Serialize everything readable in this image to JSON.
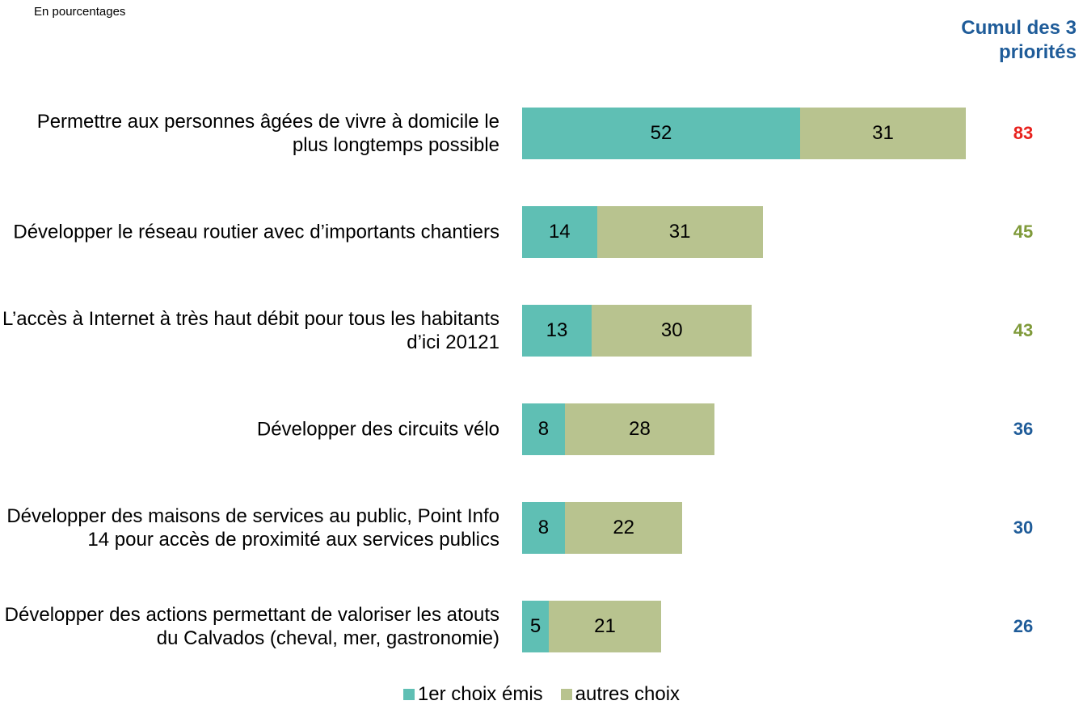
{
  "chart_data": {
    "type": "stacked-bar-horizontal",
    "subtitle": "En pourcentages",
    "totals_title": "Cumul des 3 priorités",
    "categories": [
      "Permettre aux personnes âgées de vivre à domicile le plus longtemps possible",
      "Développer le réseau routier avec d’importants chantiers",
      "L’accès à Internet à très haut débit pour tous les habitants d’ici 20121",
      "Développer des circuits vélo",
      "Développer des maisons de services au public, Point Info 14 pour accès de proximité aux services publics",
      "Développer des actions permettant de valoriser les atouts du Calvados (cheval, mer, gastronomie)"
    ],
    "series": [
      {
        "name": "1er choix émis",
        "color": "#5fbfb4",
        "values": [
          52,
          14,
          13,
          8,
          8,
          5
        ]
      },
      {
        "name": "autres choix",
        "color": "#b8c38f",
        "values": [
          31,
          31,
          30,
          28,
          22,
          21
        ]
      }
    ],
    "totals": [
      83,
      45,
      43,
      36,
      30,
      26
    ],
    "totals_colors": [
      "#e8211d",
      "#7f9a3a",
      "#7f9a3a",
      "#1f5c99",
      "#1f5c99",
      "#1f5c99"
    ],
    "legend": "bottom"
  }
}
